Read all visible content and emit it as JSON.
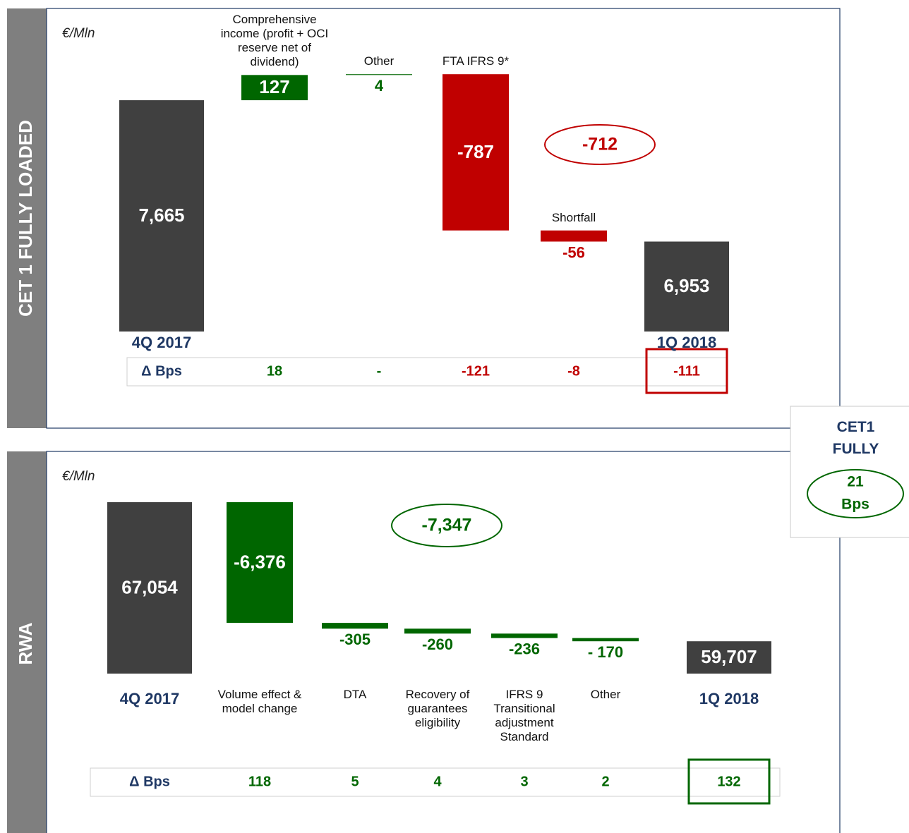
{
  "chart_data": [
    {
      "type": "waterfall",
      "side_label": "CET 1 FULLY LOADED",
      "unit": "€/Mln",
      "categories": [
        "4Q 2017",
        "Comprehensive income (profit + OCI reserve net of dividend)",
        "Other",
        "FTA IFRS 9*",
        "Shortfall",
        "1Q 2018"
      ],
      "values": [
        7665,
        127,
        4,
        -787,
        -56,
        6953
      ],
      "value_labels": [
        "7,665",
        "127",
        "4",
        "-787",
        "-56",
        "6,953"
      ],
      "colors": [
        "#404040",
        "#006600",
        "#006600",
        "#c00000",
        "#c00000",
        "#404040"
      ],
      "ylim": [
        6500,
        7850
      ],
      "annotation": "-712",
      "annotation_color": "#c00000",
      "bps": {
        "label": "Δ Bps",
        "values": [
          18,
          "-",
          -121,
          -8,
          -111
        ],
        "colors": [
          "#006600",
          "#006600",
          "#c00000",
          "#c00000",
          "#c00000"
        ],
        "highlight_color": "#c00000"
      }
    },
    {
      "type": "waterfall",
      "side_label": "RWA",
      "unit": "€/Mln",
      "categories": [
        "4Q 2017",
        "Volume effect & model change",
        "DTA",
        "Recovery of guarantees eligibility",
        "IFRS 9 Transitional adjustment Standard",
        "Other",
        "1Q 2018"
      ],
      "values": [
        67054,
        -6376,
        -305,
        -260,
        -236,
        -170,
        59707
      ],
      "value_labels": [
        "67,054",
        "-6,376",
        "-305",
        "-260",
        "-236",
        "- 170",
        "59,707"
      ],
      "colors": [
        "#404040",
        "#006600",
        "#006600",
        "#006600",
        "#006600",
        "#006600",
        "#404040"
      ],
      "ylim": [
        58000,
        67500
      ],
      "annotation": "-7,347",
      "annotation_color": "#006600",
      "bps": {
        "label": "Δ Bps",
        "values": [
          118,
          5,
          4,
          3,
          2,
          132
        ],
        "colors": [
          "#006600",
          "#006600",
          "#006600",
          "#006600",
          "#006600",
          "#006600"
        ],
        "highlight_color": "#006600"
      }
    }
  ],
  "callout": {
    "title": "CET1 FULLY",
    "value": 21,
    "unit": "Bps",
    "color": "#006600"
  }
}
